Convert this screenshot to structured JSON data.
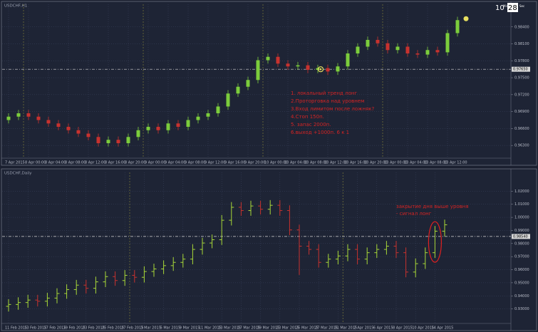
{
  "timer": {
    "minutes": "10",
    "min_label": "Min",
    "seconds": "28",
    "sec_label": "Sec"
  },
  "chart_data": [
    {
      "type": "candlestick",
      "title": "USDCHF,H1",
      "up_color": "#7ccd3c",
      "down_color": "#c8322e",
      "grid": true,
      "categories": [
        "7 Apr 2015",
        null,
        "8 Apr 00:00",
        null,
        "8 Apr 04:00",
        null,
        "8 Apr 08:00",
        null,
        "8 Apr 12:00",
        null,
        "8 Apr 16:00",
        null,
        "8 Apr 20:00",
        null,
        "9 Apr 00:00",
        null,
        "9 Apr 04:00",
        null,
        "9 Apr 08:00",
        null,
        "9 Apr 12:00",
        null,
        "9 Apr 16:00",
        null,
        "9 Apr 20:00",
        null,
        "10 Apr 00:00",
        null,
        "10 Apr 04:00",
        null,
        "10 Apr 08:00",
        null,
        "10 Apr 12:00",
        null,
        "10 Apr 16:00",
        null,
        "10 Apr 20:00",
        null,
        "13 Apr 00:00",
        null,
        "13 Apr 04:00",
        null,
        "13 Apr 08:00",
        null,
        "13 Apr 12:00",
        null
      ],
      "open": [
        0.9675,
        0.9681,
        0.9687,
        0.9681,
        0.9675,
        0.9669,
        0.9663,
        0.9657,
        0.9651,
        0.9645,
        0.9634,
        0.964,
        0.9634,
        0.9645,
        0.9657,
        0.9663,
        0.9657,
        0.9669,
        0.9663,
        0.9675,
        0.9681,
        0.9687,
        0.9699,
        0.9722,
        0.9734,
        0.9746,
        0.9781,
        0.9787,
        0.9775,
        0.977,
        0.9772,
        0.9764,
        0.9767,
        0.9761,
        0.977,
        0.9793,
        0.9805,
        0.9817,
        0.9811,
        0.9799,
        0.9805,
        0.9793,
        0.9791,
        0.9799,
        0.9795,
        0.9829
      ],
      "high": [
        0.9687,
        0.9693,
        0.9693,
        0.9687,
        0.9681,
        0.9675,
        0.9669,
        0.9663,
        0.9657,
        0.9651,
        0.9646,
        0.9646,
        0.9651,
        0.9663,
        0.9669,
        0.9669,
        0.9675,
        0.9675,
        0.9681,
        0.9687,
        0.9693,
        0.9705,
        0.9728,
        0.974,
        0.9752,
        0.9787,
        0.9793,
        0.9793,
        0.9781,
        0.9778,
        0.9778,
        0.9773,
        0.9773,
        0.9776,
        0.9799,
        0.9811,
        0.9823,
        0.9823,
        0.9817,
        0.9811,
        0.9811,
        0.9799,
        0.9805,
        0.9805,
        0.9835,
        0.9858
      ],
      "low": [
        0.9669,
        0.9675,
        0.9675,
        0.9669,
        0.9663,
        0.9657,
        0.9651,
        0.9645,
        0.9639,
        0.9628,
        0.9628,
        0.9628,
        0.9628,
        0.9639,
        0.9651,
        0.9651,
        0.9651,
        0.9657,
        0.9657,
        0.9669,
        0.9675,
        0.9681,
        0.9693,
        0.9716,
        0.9728,
        0.974,
        0.9775,
        0.9769,
        0.9764,
        0.9764,
        0.9758,
        0.9758,
        0.9755,
        0.9755,
        0.9764,
        0.9787,
        0.9799,
        0.9805,
        0.9793,
        0.9793,
        0.9787,
        0.9785,
        0.9785,
        0.9789,
        0.9789,
        0.9823
      ],
      "close": [
        0.9681,
        0.9687,
        0.9681,
        0.9675,
        0.9669,
        0.9663,
        0.9657,
        0.9651,
        0.9645,
        0.9634,
        0.964,
        0.9634,
        0.9645,
        0.9657,
        0.9663,
        0.9657,
        0.9669,
        0.9663,
        0.9675,
        0.9681,
        0.9687,
        0.9699,
        0.9722,
        0.9734,
        0.9746,
        0.9781,
        0.9787,
        0.9775,
        0.977,
        0.9772,
        0.9764,
        0.9767,
        0.9761,
        0.977,
        0.9793,
        0.9805,
        0.9817,
        0.9811,
        0.9799,
        0.9805,
        0.9793,
        0.9791,
        0.9799,
        0.9795,
        0.9829,
        0.9852
      ],
      "ylim": [
        0.961,
        0.987
      ],
      "yticks": [
        {
          "value": 0.963,
          "label": "0.96300"
        },
        {
          "value": 0.966,
          "label": "0.96600"
        },
        {
          "value": 0.969,
          "label": "0.96900"
        },
        {
          "value": 0.972,
          "label": "0.97200"
        },
        {
          "value": 0.975,
          "label": "0.97500"
        },
        {
          "value": 0.978,
          "label": "0.97800"
        },
        {
          "value": 0.981,
          "label": "0.98100"
        },
        {
          "value": 0.984,
          "label": "0.98400"
        }
      ],
      "level": {
        "value": 0.9765,
        "label": "0.97650"
      },
      "annotations": [
        "1. локальный тренд лонг",
        "2.Проторговка над уровнем",
        "3.Вход лимитом после ложняк?",
        "4.Стоп 150п.",
        "5. запас 2000п.",
        "6.выход +1000п. 6 к 1"
      ]
    },
    {
      "type": "ohlc",
      "title": "USDCHF,Daily",
      "up_color": "#a8d838",
      "down_color": "#c8322e",
      "grid": true,
      "categories": [
        "11 Feb 2015",
        null,
        "13 Feb 2015",
        null,
        "17 Feb 2015",
        null,
        "19 Feb 2015",
        null,
        "23 Feb 2015",
        null,
        "25 Feb 2015",
        null,
        "27 Feb 2015",
        null,
        "3 Mar 2015",
        null,
        "5 Mar 2015",
        null,
        "9 Mar 2015",
        null,
        "11 Mar 2015",
        null,
        "13 Mar 2015",
        null,
        "17 Mar 2015",
        null,
        "19 Mar 2015",
        null,
        "23 Mar 2015",
        null,
        "25 Mar 2015",
        null,
        "27 Mar 2015",
        null,
        "31 Mar 2015",
        null,
        "2 Apr 2015",
        null,
        "6 Apr 2015",
        null,
        "8 Apr 2015",
        null,
        "10 Apr 2015",
        null,
        "14 Apr 2015",
        null
      ],
      "open": [
        0.932,
        0.9334,
        0.9349,
        0.9368,
        0.9359,
        0.9383,
        0.9418,
        0.9448,
        0.9482,
        0.9458,
        0.9507,
        0.9547,
        0.9517,
        0.9557,
        0.9542,
        0.9586,
        0.9606,
        0.9631,
        0.9656,
        0.9681,
        0.9755,
        0.9804,
        0.9829,
        0.9978,
        1.0077,
        1.0052,
        1.0087,
        1.0062,
        1.0092,
        1.0052,
        0.9904,
        0.978,
        0.9755,
        0.9656,
        0.9681,
        0.9705,
        0.9755,
        0.9681,
        0.973,
        0.9755,
        0.978,
        0.973,
        0.9582,
        0.9646,
        0.973,
        0.9894
      ],
      "high": [
        0.9374,
        0.9389,
        0.9408,
        0.9408,
        0.9423,
        0.9458,
        0.9488,
        0.9522,
        0.9522,
        0.9547,
        0.9587,
        0.9587,
        0.9597,
        0.9597,
        0.9626,
        0.9646,
        0.9671,
        0.9696,
        0.9721,
        0.9795,
        0.9844,
        0.9869,
        1.0018,
        1.0117,
        1.0117,
        1.0127,
        1.0127,
        1.0132,
        1.0132,
        1.0092,
        0.9944,
        0.982,
        0.9795,
        0.9721,
        0.9745,
        0.9795,
        0.9795,
        0.977,
        0.9795,
        0.982,
        0.982,
        0.977,
        0.9686,
        0.977,
        0.9934,
        0.9983
      ],
      "low": [
        0.928,
        0.9294,
        0.9309,
        0.9319,
        0.9319,
        0.9343,
        0.9378,
        0.9408,
        0.9418,
        0.9418,
        0.9467,
        0.9477,
        0.9477,
        0.9502,
        0.9502,
        0.9546,
        0.9566,
        0.9591,
        0.9616,
        0.9641,
        0.9715,
        0.9764,
        0.9789,
        0.9938,
        1.0012,
        1.0012,
        1.0022,
        1.0022,
        1.0012,
        0.9864,
        0.956,
        0.9715,
        0.9616,
        0.9616,
        0.9641,
        0.9665,
        0.9641,
        0.9641,
        0.969,
        0.9715,
        0.969,
        0.9542,
        0.9542,
        0.9606,
        0.969,
        0.9854
      ],
      "close": [
        0.9334,
        0.9349,
        0.9368,
        0.9359,
        0.9383,
        0.9418,
        0.9448,
        0.9482,
        0.9458,
        0.9507,
        0.9547,
        0.9517,
        0.9557,
        0.9542,
        0.9586,
        0.9606,
        0.9631,
        0.9656,
        0.9681,
        0.9755,
        0.9804,
        0.9829,
        0.9978,
        1.0077,
        1.0052,
        1.0087,
        1.0062,
        1.0092,
        1.0052,
        0.9904,
        0.978,
        0.9755,
        0.9656,
        0.9681,
        0.9705,
        0.9755,
        0.9681,
        0.973,
        0.9755,
        0.978,
        0.973,
        0.9582,
        0.9646,
        0.973,
        0.9894,
        0.9943
      ],
      "ylim": [
        0.92,
        1.03
      ],
      "yticks": [
        {
          "value": 0.93,
          "label": "0.93000"
        },
        {
          "value": 0.94,
          "label": "0.94000"
        },
        {
          "value": 0.95,
          "label": "0.95000"
        },
        {
          "value": 0.96,
          "label": "0.96000"
        },
        {
          "value": 0.97,
          "label": "0.97000"
        },
        {
          "value": 0.98,
          "label": "0.98000"
        },
        {
          "value": 0.99,
          "label": "0.99000"
        },
        {
          "value": 1.0,
          "label": "1.00000"
        },
        {
          "value": 1.01,
          "label": "1.01000"
        },
        {
          "value": 1.02,
          "label": "1.02000"
        }
      ],
      "level": {
        "value": 0.9854,
        "label": "0.98540"
      },
      "annotations": [
        "закрытие дня выше уровня",
        "- сигнал лонг"
      ]
    }
  ]
}
